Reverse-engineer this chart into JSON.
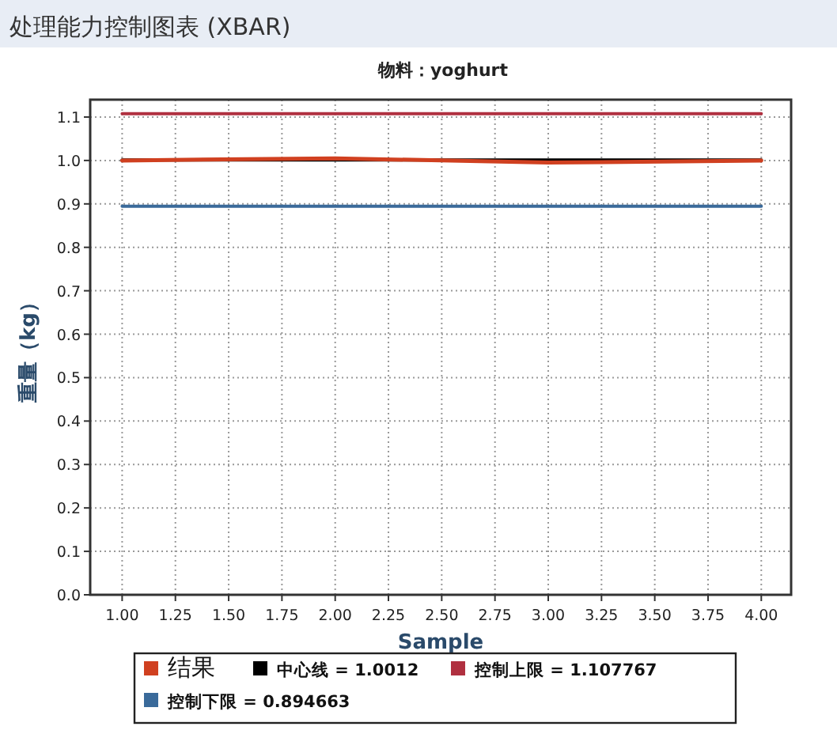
{
  "chart_data": {
    "type": "line",
    "title": "处理能力控制图表 (XBAR)",
    "subtitle": "物料：yoghurt",
    "xlabel": "Sample",
    "ylabel": "重量（kg）",
    "x": [
      1,
      2,
      3,
      4
    ],
    "series": [
      {
        "name": "结果",
        "color": "#d04020",
        "values": [
          1.0,
          1.005,
          0.995,
          1.0
        ]
      },
      {
        "name": "中心线 = 1.0012",
        "color": "#000000",
        "values": [
          1.0012,
          1.0012,
          1.0012,
          1.0012
        ]
      },
      {
        "name": "控制上限 = 1.107767",
        "color": "#b03040",
        "values": [
          1.107767,
          1.107767,
          1.107767,
          1.107767
        ]
      },
      {
        "name": "控制下限 = 0.894663",
        "color": "#3a6a9a",
        "values": [
          0.894663,
          0.894663,
          0.894663,
          0.894663
        ]
      }
    ],
    "xlim": [
      0.85,
      4.14
    ],
    "ylim": [
      0,
      1.14
    ],
    "xticks": [
      {
        "value": 1,
        "label": "1.00"
      },
      {
        "value": 1.25,
        "label": "1.25"
      },
      {
        "value": 1.5,
        "label": "1.50"
      },
      {
        "value": 1.75,
        "label": "1.75"
      },
      {
        "value": 2,
        "label": "2.00"
      },
      {
        "value": 2.25,
        "label": "2.25"
      },
      {
        "value": 2.5,
        "label": "2.50"
      },
      {
        "value": 2.75,
        "label": "2.75"
      },
      {
        "value": 3,
        "label": "3.00"
      },
      {
        "value": 3.25,
        "label": "3.25"
      },
      {
        "value": 3.5,
        "label": "3.50"
      },
      {
        "value": 3.75,
        "label": "3.75"
      },
      {
        "value": 4,
        "label": "4.00"
      }
    ],
    "yticks": [
      {
        "value": 0,
        "label": "0.0"
      },
      {
        "value": 0.1,
        "label": "0.1"
      },
      {
        "value": 0.2,
        "label": "0.2"
      },
      {
        "value": 0.3,
        "label": "0.3"
      },
      {
        "value": 0.4,
        "label": "0.4"
      },
      {
        "value": 0.5,
        "label": "0.5"
      },
      {
        "value": 0.6,
        "label": "0.6"
      },
      {
        "value": 0.7,
        "label": "0.7"
      },
      {
        "value": 0.8,
        "label": "0.8"
      },
      {
        "value": 0.9,
        "label": "0.9"
      },
      {
        "value": 1.0,
        "label": "1.0"
      },
      {
        "value": 1.1,
        "label": "1.1"
      }
    ],
    "grid": true,
    "legend": "bottom",
    "line_style": "solid",
    "marker": "none"
  }
}
